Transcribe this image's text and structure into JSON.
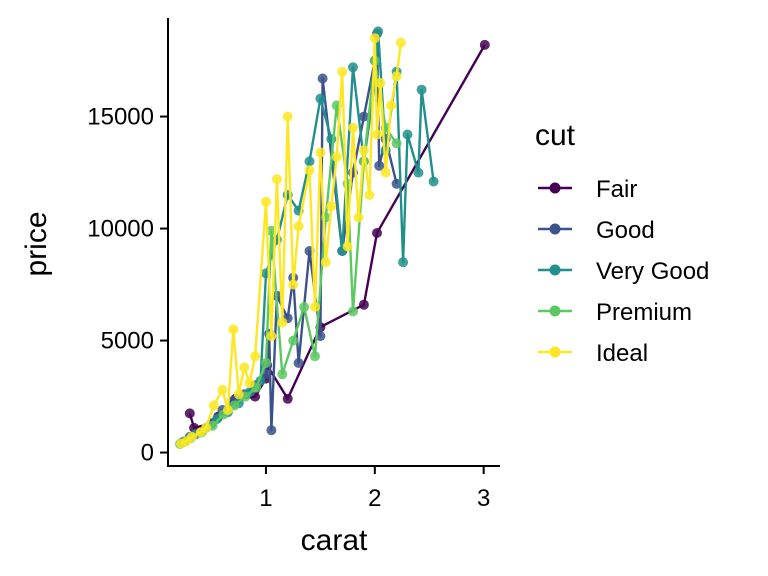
{
  "chart_data": {
    "type": "line",
    "title": "",
    "xlabel": "carat",
    "ylabel": "price",
    "xlim": [
      0.1,
      3.15
    ],
    "ylim": [
      -600,
      19400
    ],
    "x_ticks": [
      1,
      2,
      3
    ],
    "y_ticks": [
      0,
      5000,
      10000,
      15000
    ],
    "grid": false,
    "legend": {
      "title": "cut",
      "placement": "right"
    },
    "series": [
      {
        "name": "Fair",
        "color": "#440154",
        "x": [
          0.3,
          0.34,
          0.5,
          0.56,
          0.7,
          0.72,
          0.9,
          1.0,
          1.01,
          1.2,
          1.5,
          1.9,
          2.02,
          3.01
        ],
        "y": [
          1750,
          1100,
          1300,
          1600,
          2200,
          2400,
          2500,
          3300,
          3900,
          2400,
          5600,
          6600,
          9800,
          18200
        ]
      },
      {
        "name": "Good",
        "color": "#3B528B",
        "x": [
          0.23,
          0.3,
          0.4,
          0.5,
          0.6,
          0.7,
          0.8,
          0.9,
          1.0,
          1.03,
          1.05,
          1.1,
          1.2,
          1.25,
          1.3,
          1.4,
          1.5,
          1.52,
          1.7,
          1.8,
          1.9,
          2.0,
          2.02,
          2.04,
          2.1,
          2.2
        ],
        "y": [
          450,
          700,
          900,
          1300,
          1900,
          2300,
          2600,
          3000,
          3500,
          5300,
          1000,
          7000,
          6000,
          7800,
          4000,
          9000,
          5200,
          16700,
          9000,
          12500,
          15000,
          17500,
          18700,
          12800,
          14000,
          12000
        ]
      },
      {
        "name": "Very Good",
        "color": "#21908C",
        "x": [
          0.25,
          0.35,
          0.45,
          0.55,
          0.65,
          0.75,
          0.85,
          0.95,
          1.0,
          1.1,
          1.2,
          1.3,
          1.4,
          1.5,
          1.6,
          1.7,
          1.8,
          1.9,
          2.0,
          2.03,
          2.1,
          2.2,
          2.26,
          2.3,
          2.4,
          2.43,
          2.54
        ],
        "y": [
          500,
          800,
          1100,
          1500,
          1800,
          2200,
          2700,
          3200,
          8000,
          9500,
          11500,
          10800,
          13000,
          15800,
          14000,
          9000,
          17200,
          13000,
          16500,
          18800,
          13500,
          17000,
          8500,
          14200,
          12500,
          16200,
          12100
        ]
      },
      {
        "name": "Premium",
        "color": "#5DC863",
        "x": [
          0.21,
          0.31,
          0.41,
          0.51,
          0.61,
          0.71,
          0.81,
          0.91,
          1.0,
          1.05,
          1.15,
          1.25,
          1.35,
          1.45,
          1.55,
          1.65,
          1.75,
          1.8,
          1.9,
          2.0,
          2.1,
          2.2
        ],
        "y": [
          380,
          650,
          900,
          1200,
          1700,
          2100,
          2500,
          2900,
          4000,
          9900,
          3500,
          5000,
          6500,
          4300,
          10500,
          15500,
          12000,
          6300,
          13000,
          17500,
          14500,
          13800
        ]
      },
      {
        "name": "Ideal",
        "color": "#FDE725",
        "x": [
          0.22,
          0.27,
          0.32,
          0.4,
          0.45,
          0.52,
          0.6,
          0.65,
          0.7,
          0.75,
          0.8,
          0.85,
          0.9,
          1.0,
          1.05,
          1.1,
          1.15,
          1.2,
          1.25,
          1.3,
          1.4,
          1.45,
          1.5,
          1.55,
          1.6,
          1.65,
          1.7,
          1.75,
          1.8,
          1.85,
          1.9,
          1.95,
          2.0,
          2.02,
          2.05,
          2.1,
          2.15,
          2.2,
          2.24
        ],
        "y": [
          400,
          500,
          700,
          900,
          1100,
          2100,
          2800,
          1900,
          5500,
          2600,
          3800,
          3100,
          4300,
          11200,
          5200,
          12200,
          5800,
          15000,
          7500,
          10100,
          12600,
          6500,
          13400,
          8500,
          11000,
          13200,
          17000,
          9200,
          14500,
          10500,
          13500,
          11500,
          18500,
          14200,
          16500,
          12500,
          15500,
          16800,
          18300
        ]
      }
    ]
  }
}
